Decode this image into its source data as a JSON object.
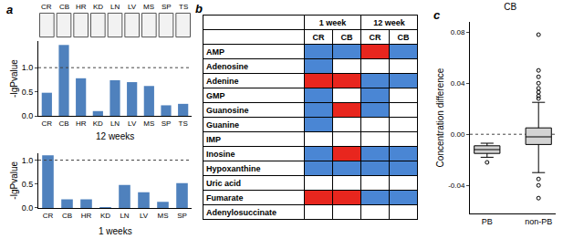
{
  "panel_labels": [
    "a",
    "b",
    "c"
  ],
  "icon_labels": [
    "CR",
    "CB",
    "HR",
    "KD",
    "LN",
    "LV",
    "MS",
    "SP",
    "TS"
  ],
  "chart_data": [
    {
      "type": "bar",
      "title": "12 weeks",
      "y_label": "-lgPvalue",
      "categories": [
        "CR",
        "CB",
        "HR",
        "KD",
        "LN",
        "LV",
        "MS",
        "SP",
        "TS"
      ],
      "values": [
        0.48,
        1.47,
        0.78,
        0.1,
        0.74,
        0.7,
        0.62,
        0.22,
        0.25
      ],
      "color": "#4f81bd",
      "ylim": [
        0,
        1.55
      ],
      "yticks": [
        {
          "value": 0,
          "label": "0.0"
        },
        {
          "value": 0.5,
          "label": "0.5"
        },
        {
          "value": 1,
          "label": "1.0"
        }
      ],
      "reference_line": 1
    },
    {
      "type": "bar",
      "title": "1 weeks",
      "y_label": "-lgPvalue",
      "categories": [
        "CR",
        "CB",
        "HR",
        "KD",
        "LN",
        "LV",
        "MS",
        "SP"
      ],
      "values": [
        1.1,
        0.18,
        0.18,
        0.02,
        0.48,
        0.33,
        0.13,
        0.52
      ],
      "color": "#4f81bd",
      "ylim": [
        0,
        1.15
      ],
      "yticks": [
        {
          "value": 0,
          "label": "0.0"
        },
        {
          "value": 0.5,
          "label": "0.5"
        },
        {
          "value": 1,
          "label": "1.0"
        }
      ],
      "reference_line": 1
    },
    {
      "type": "box",
      "title": "CB",
      "y_label": "Concentration difference",
      "categories": [
        "PB",
        "non-PB"
      ],
      "q1": [
        -0.015,
        -0.008
      ],
      "median": [
        -0.012,
        -0.002
      ],
      "q3": [
        -0.009,
        0.005
      ],
      "lower_whisker": [
        -0.018,
        -0.03
      ],
      "upper_whisker": [
        -0.007,
        0.025
      ],
      "outliers": [
        [
          -0.022
        ],
        [
          0.028,
          0.03,
          0.033,
          0.036,
          0.04,
          0.045,
          0.05,
          0.078,
          -0.035,
          -0.04,
          -0.05
        ]
      ],
      "color": "#d3d3d3",
      "ylim": [
        -0.062,
        0.088
      ],
      "yticks": [
        -0.04,
        {
          "value": 0,
          "label": "0.00"
        },
        0.04,
        0.08
      ],
      "reference_line": 0
    }
  ],
  "table": {
    "header_groups": [
      {
        "label": "1 week",
        "columns": [
          "CR",
          "CB"
        ]
      },
      {
        "label": "12 week",
        "columns": [
          "CR",
          "CB"
        ]
      }
    ],
    "rows": [
      {
        "label": "AMP",
        "cells": [
          "#4a86d4",
          "#4a86d4",
          "#e8261e",
          "#4a86d4"
        ]
      },
      {
        "label": "Adenosine",
        "cells": [
          "#4a86d4",
          null,
          null,
          null
        ]
      },
      {
        "label": "Adenine",
        "cells": [
          "#e8261e",
          "#e8261e",
          "#4a86d4",
          "#4a86d4"
        ]
      },
      {
        "label": "GMP",
        "cells": [
          "#4a86d4",
          null,
          "#4a86d4",
          null
        ]
      },
      {
        "label": "Guanosine",
        "cells": [
          "#4a86d4",
          "#e8261e",
          "#4a86d4",
          null
        ]
      },
      {
        "label": "Guanine",
        "cells": [
          "#4a86d4",
          null,
          null,
          null
        ]
      },
      {
        "label": "IMP",
        "cells": [
          null,
          null,
          null,
          null
        ]
      },
      {
        "label": "Inosine",
        "cells": [
          "#4a86d4",
          "#e8261e",
          "#4a86d4",
          "#4a86d4"
        ]
      },
      {
        "label": "Hypoxanthine",
        "cells": [
          "#4a86d4",
          "#4a86d4",
          "#4a86d4",
          "#4a86d4"
        ]
      },
      {
        "label": "Uric acid",
        "cells": [
          null,
          null,
          null,
          null
        ]
      },
      {
        "label": "Fumarate",
        "cells": [
          "#e8261e",
          "#e8261e",
          "#4a86d4",
          "#4a86d4"
        ]
      },
      {
        "label": "Adenylosuccinate",
        "cells": [
          null,
          null,
          null,
          null
        ]
      }
    ]
  }
}
